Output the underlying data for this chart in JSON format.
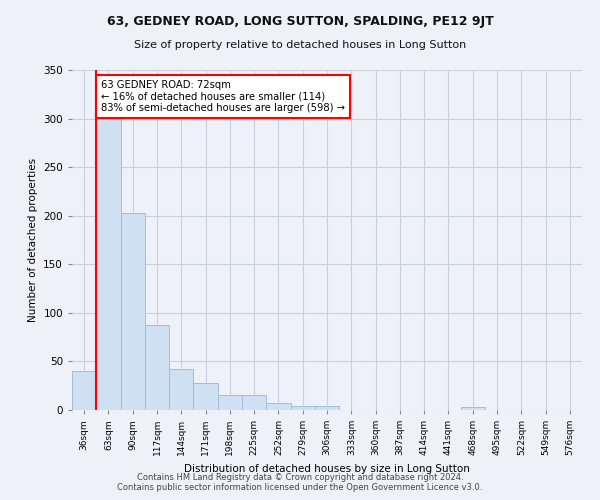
{
  "title1": "63, GEDNEY ROAD, LONG SUTTON, SPALDING, PE12 9JT",
  "title2": "Size of property relative to detached houses in Long Sutton",
  "xlabel": "Distribution of detached houses by size in Long Sutton",
  "ylabel": "Number of detached properties",
  "bar_labels": [
    "36sqm",
    "63sqm",
    "90sqm",
    "117sqm",
    "144sqm",
    "171sqm",
    "198sqm",
    "225sqm",
    "252sqm",
    "279sqm",
    "306sqm",
    "333sqm",
    "360sqm",
    "387sqm",
    "414sqm",
    "441sqm",
    "468sqm",
    "495sqm",
    "522sqm",
    "549sqm",
    "576sqm"
  ],
  "bar_values": [
    40,
    300,
    203,
    88,
    42,
    28,
    15,
    15,
    7,
    4,
    4,
    0,
    0,
    0,
    0,
    0,
    3,
    0,
    0,
    0,
    0
  ],
  "bar_color": "#cfe0f2",
  "bar_edge_color": "#a0bedd",
  "red_line_x": 1,
  "annotation_text": "63 GEDNEY ROAD: 72sqm\n← 16% of detached houses are smaller (114)\n83% of semi-detached houses are larger (598) →",
  "annotation_box_color": "white",
  "annotation_box_edge": "red",
  "ylim": [
    0,
    350
  ],
  "yticks": [
    0,
    50,
    100,
    150,
    200,
    250,
    300,
    350
  ],
  "footer": "Contains HM Land Registry data © Crown copyright and database right 2024.\nContains public sector information licensed under the Open Government Licence v3.0.",
  "bg_color": "#eef2f8",
  "grid_color": "#c8d0e0"
}
